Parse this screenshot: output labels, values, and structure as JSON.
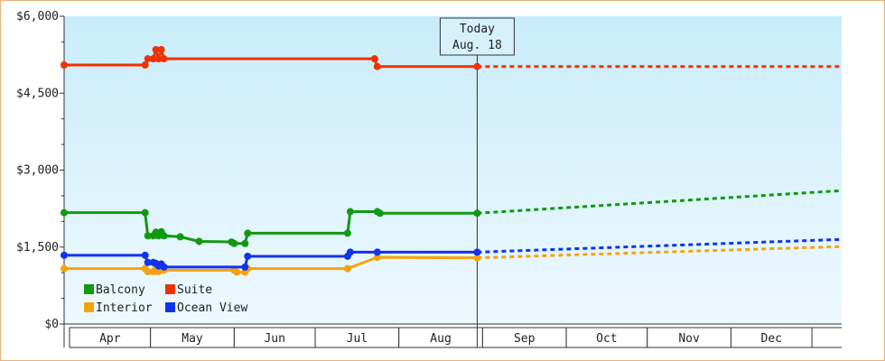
{
  "chart_data": {
    "type": "line",
    "title": "",
    "xlabel": "",
    "ylabel": "",
    "ylim": [
      0,
      6000
    ],
    "yticks": [
      0,
      1500,
      3000,
      4500,
      6000
    ],
    "ytick_labels": [
      "$0",
      "$1,500",
      "$3,000",
      "$4,500",
      "$6,000"
    ],
    "xlim": [
      "2024-03-18",
      "2024-12-31"
    ],
    "months": [
      {
        "label": "Apr",
        "start": "2024-03-20",
        "end": "2024-04-19"
      },
      {
        "label": "May",
        "start": "2024-04-19",
        "end": "2024-05-20"
      },
      {
        "label": "Jun",
        "start": "2024-05-20",
        "end": "2024-06-19"
      },
      {
        "label": "Jul",
        "start": "2024-06-19",
        "end": "2024-07-20"
      },
      {
        "label": "Aug",
        "start": "2024-07-20",
        "end": "2024-08-20"
      },
      {
        "label": "Sep",
        "start": "2024-08-20",
        "end": "2024-09-20"
      },
      {
        "label": "Oct",
        "start": "2024-09-20",
        "end": "2024-10-20"
      },
      {
        "label": "Nov",
        "start": "2024-10-20",
        "end": "2024-11-20"
      },
      {
        "label": "Dec",
        "start": "2024-11-20",
        "end": "2024-12-20"
      }
    ],
    "today": {
      "date": "2024-08-18",
      "line1": "Today",
      "line2": "Aug. 18"
    },
    "grid": false,
    "legend_position": "bottom-left",
    "series": [
      {
        "name": "Balcony",
        "color": "#119911",
        "points": [
          [
            "2024-03-18",
            2170
          ],
          [
            "2024-04-17",
            2170
          ],
          [
            "2024-04-18",
            1720
          ],
          [
            "2024-04-20",
            1720
          ],
          [
            "2024-04-21",
            1790
          ],
          [
            "2024-04-22",
            1720
          ],
          [
            "2024-04-23",
            1800
          ],
          [
            "2024-04-24",
            1720
          ],
          [
            "2024-04-30",
            1700
          ],
          [
            "2024-05-07",
            1610
          ],
          [
            "2024-05-19",
            1600
          ],
          [
            "2024-05-20",
            1570
          ],
          [
            "2024-05-24",
            1570
          ],
          [
            "2024-05-25",
            1770
          ],
          [
            "2024-07-01",
            1770
          ],
          [
            "2024-07-02",
            2190
          ],
          [
            "2024-07-12",
            2190
          ],
          [
            "2024-07-13",
            2160
          ],
          [
            "2024-08-18",
            2160
          ]
        ],
        "forecast": [
          [
            "2024-08-18",
            2160
          ],
          [
            "2024-12-31",
            2600
          ]
        ]
      },
      {
        "name": "Suite",
        "color": "#ee3300",
        "points": [
          [
            "2024-03-18",
            5050
          ],
          [
            "2024-04-17",
            5050
          ],
          [
            "2024-04-18",
            5170
          ],
          [
            "2024-04-20",
            5170
          ],
          [
            "2024-04-21",
            5350
          ],
          [
            "2024-04-22",
            5170
          ],
          [
            "2024-04-23",
            5350
          ],
          [
            "2024-04-24",
            5170
          ],
          [
            "2024-07-11",
            5170
          ],
          [
            "2024-07-12",
            5020
          ],
          [
            "2024-08-18",
            5020
          ]
        ],
        "forecast": [
          [
            "2024-08-18",
            5020
          ],
          [
            "2024-12-31",
            5020
          ]
        ]
      },
      {
        "name": "Interior",
        "color": "#f5a20f",
        "points": [
          [
            "2024-03-18",
            1080
          ],
          [
            "2024-04-17",
            1080
          ],
          [
            "2024-04-18",
            1020
          ],
          [
            "2024-04-20",
            1020
          ],
          [
            "2024-04-21",
            1090
          ],
          [
            "2024-04-22",
            1020
          ],
          [
            "2024-04-23",
            1080
          ],
          [
            "2024-04-24",
            1050
          ],
          [
            "2024-05-20",
            1050
          ],
          [
            "2024-05-21",
            1010
          ],
          [
            "2024-05-24",
            1010
          ],
          [
            "2024-05-25",
            1080
          ],
          [
            "2024-07-01",
            1080
          ],
          [
            "2024-07-12",
            1300
          ],
          [
            "2024-08-18",
            1290
          ]
        ],
        "forecast": [
          [
            "2024-08-18",
            1290
          ],
          [
            "2024-12-31",
            1510
          ]
        ]
      },
      {
        "name": "Ocean View",
        "color": "#1133ee",
        "points": [
          [
            "2024-03-18",
            1340
          ],
          [
            "2024-04-17",
            1340
          ],
          [
            "2024-04-18",
            1200
          ],
          [
            "2024-04-20",
            1200
          ],
          [
            "2024-04-21",
            1180
          ],
          [
            "2024-04-22",
            1130
          ],
          [
            "2024-04-23",
            1170
          ],
          [
            "2024-04-24",
            1110
          ],
          [
            "2024-05-24",
            1110
          ],
          [
            "2024-05-25",
            1320
          ],
          [
            "2024-07-01",
            1320
          ],
          [
            "2024-07-02",
            1400
          ],
          [
            "2024-07-12",
            1400
          ],
          [
            "2024-08-18",
            1400
          ]
        ],
        "forecast": [
          [
            "2024-08-18",
            1400
          ],
          [
            "2024-12-31",
            1650
          ]
        ]
      }
    ]
  }
}
